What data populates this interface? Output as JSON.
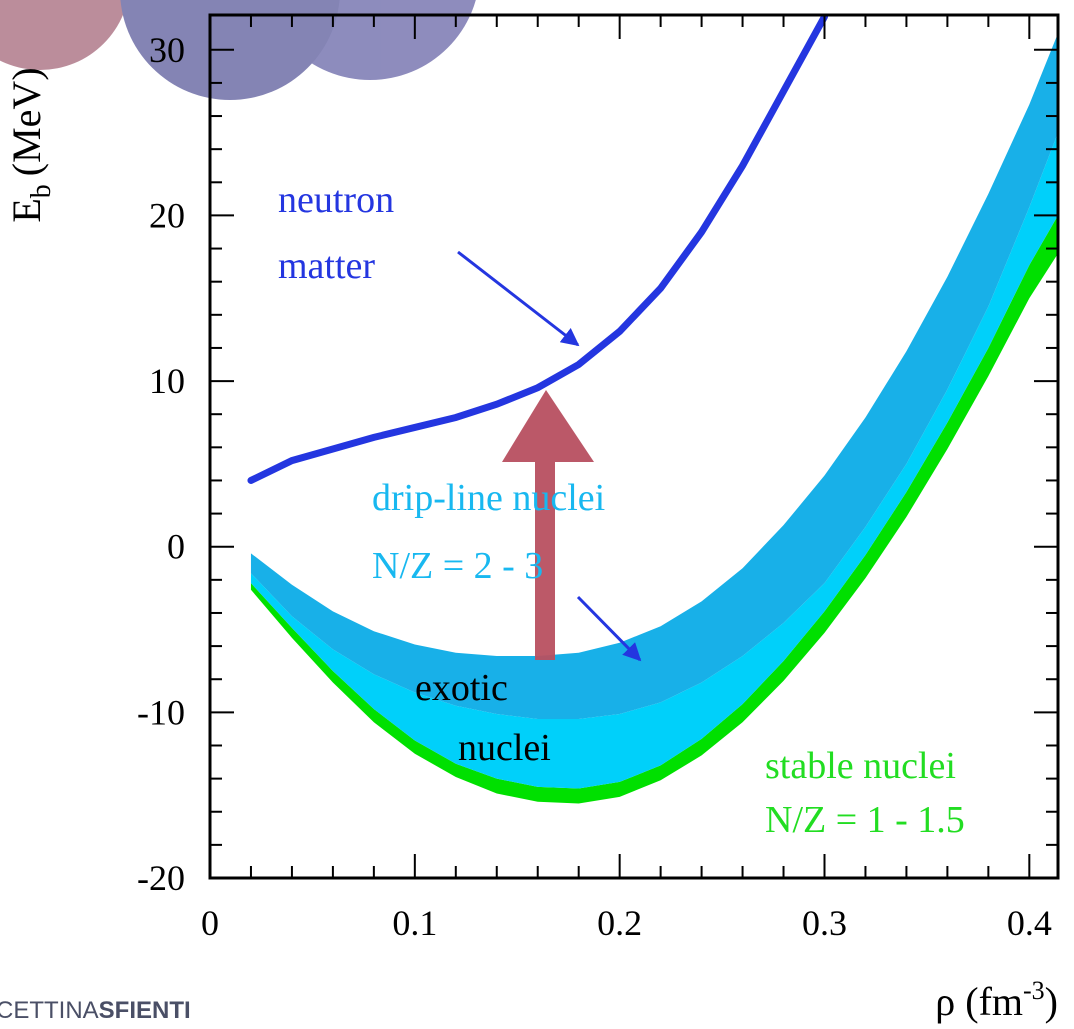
{
  "chart_data": {
    "type": "line",
    "x_label": {
      "main": "ρ (fm",
      "sup": "-3",
      "end": ")"
    },
    "y_label": {
      "main": "E",
      "sub": "b",
      "unit": "(MeV)"
    },
    "xlim": [
      0,
      0.414
    ],
    "ylim": [
      -20,
      32.1
    ],
    "xticks": [
      0,
      0.1,
      0.2,
      0.3,
      0.4
    ],
    "yticks": [
      -20,
      -10,
      0,
      10,
      20,
      30
    ],
    "xminorticks": [
      0.02,
      0.04,
      0.06,
      0.08,
      0.12,
      0.14,
      0.16,
      0.18,
      0.22,
      0.24,
      0.26,
      0.28,
      0.32,
      0.34,
      0.36,
      0.38
    ],
    "yminorticks": [
      -18,
      -16,
      -14,
      -12,
      -8,
      -6,
      -4,
      -2,
      2,
      4,
      6,
      8,
      12,
      14,
      16,
      18,
      22,
      24,
      26,
      28
    ],
    "x": [
      0.02,
      0.04,
      0.06,
      0.08,
      0.1,
      0.12,
      0.14,
      0.16,
      0.18,
      0.2,
      0.22,
      0.24,
      0.26,
      0.28,
      0.3,
      0.32,
      0.34,
      0.36,
      0.38,
      0.4,
      0.414
    ],
    "series": [
      {
        "kind": "band",
        "color": "#00e000",
        "lower": [
          -2.6,
          -5.5,
          -8.2,
          -10.6,
          -12.5,
          -13.9,
          -14.9,
          -15.4,
          -15.5,
          -15.1,
          -14.1,
          -12.6,
          -10.6,
          -8.1,
          -5.2,
          -1.9,
          1.8,
          5.9,
          10.3,
          15.0,
          17.7
        ],
        "upper": [
          -2.2,
          -4.9,
          -7.5,
          -9.8,
          -11.7,
          -13.1,
          -14.0,
          -14.5,
          -14.6,
          -14.2,
          -13.2,
          -11.6,
          -9.5,
          -6.9,
          -3.9,
          -0.5,
          3.3,
          7.5,
          12.0,
          17.0,
          20.0
        ]
      },
      {
        "kind": "band",
        "color": "#00d0fa",
        "lower": [
          -2.2,
          -4.9,
          -7.5,
          -9.8,
          -11.7,
          -13.1,
          -14.0,
          -14.5,
          -14.6,
          -14.2,
          -13.2,
          -11.6,
          -9.5,
          -6.9,
          -3.9,
          -0.5,
          3.3,
          7.5,
          12.0,
          17.0,
          20.0
        ],
        "upper": [
          -1.6,
          -4.2,
          -6.2,
          -7.7,
          -8.8,
          -9.6,
          -10.1,
          -10.4,
          -10.4,
          -10.1,
          -9.4,
          -8.2,
          -6.6,
          -4.6,
          -2.2,
          1.2,
          5.0,
          9.5,
          14.5,
          20.5,
          25.0
        ]
      },
      {
        "kind": "band",
        "color": "#18b0e8",
        "lower": [
          -1.6,
          -4.2,
          -6.2,
          -7.7,
          -8.8,
          -9.6,
          -10.1,
          -10.4,
          -10.4,
          -10.1,
          -9.4,
          -8.2,
          -6.6,
          -4.6,
          -2.2,
          1.2,
          5.0,
          9.5,
          14.5,
          20.5,
          25.0
        ],
        "upper": [
          -0.4,
          -2.3,
          -3.9,
          -5.1,
          -5.9,
          -6.4,
          -6.6,
          -6.6,
          -6.4,
          -5.8,
          -4.8,
          -3.3,
          -1.3,
          1.3,
          4.3,
          7.8,
          11.8,
          16.3,
          21.3,
          26.7,
          31.0
        ]
      },
      {
        "kind": "line",
        "color": "#2436e0",
        "values": [
          4.0,
          5.2,
          5.9,
          6.6,
          7.2,
          7.8,
          8.6,
          9.6,
          11.0,
          13.0,
          15.6,
          19.0,
          23.0,
          27.5,
          32.0,
          null,
          null,
          null,
          null,
          null,
          null
        ]
      }
    ],
    "annotations": [
      {
        "text": "neutron",
        "color": "#2436e0"
      },
      {
        "text": "matter",
        "color": "#2436e0"
      },
      {
        "text": "drip-line nuclei",
        "color": "#18b8f0"
      },
      {
        "text": "N/Z = 2 - 3",
        "color": "#18b8f0"
      },
      {
        "text": "exotic",
        "color": "#000000"
      },
      {
        "text": "nuclei",
        "color": "#000000"
      },
      {
        "text": "stable nuclei",
        "color": "#22dd22"
      },
      {
        "text": "N/Z = 1 - 1.5",
        "color": "#22dd22"
      }
    ]
  },
  "footer": {
    "logo_light": "CETTINA",
    "logo_bold": "SFIENTI"
  }
}
